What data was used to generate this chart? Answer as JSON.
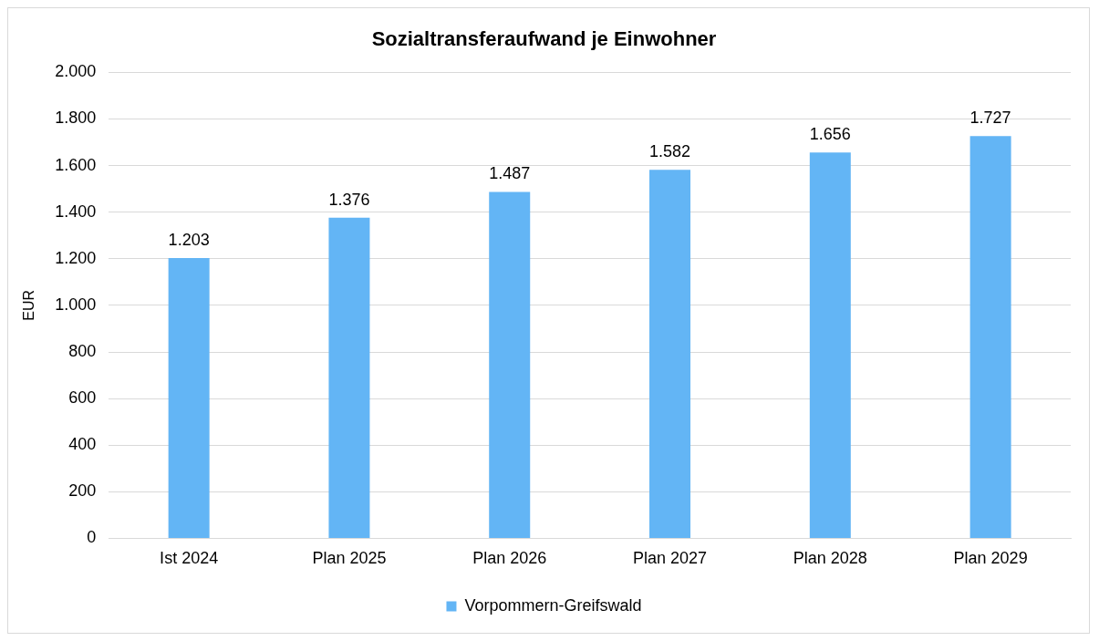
{
  "chart_data": {
    "type": "bar",
    "title": "Sozialtransferaufwand je Einwohner",
    "ylabel": "EUR",
    "categories": [
      "Ist 2024",
      "Plan 2025",
      "Plan 2026",
      "Plan 2027",
      "Plan 2028",
      "Plan 2029"
    ],
    "series": [
      {
        "name": "Vorpommern-Greifswald",
        "color": "#63b5f5",
        "values": [
          1203,
          1376,
          1487,
          1582,
          1656,
          1727
        ],
        "value_labels": [
          "1.203",
          "1.376",
          "1.487",
          "1.582",
          "1.656",
          "1.727"
        ]
      }
    ],
    "ylim": [
      0,
      2000
    ],
    "yticks": [
      {
        "value": 0,
        "label": "0"
      },
      {
        "value": 200,
        "label": "200"
      },
      {
        "value": 400,
        "label": "400"
      },
      {
        "value": 600,
        "label": "600"
      },
      {
        "value": 800,
        "label": "800"
      },
      {
        "value": 1000,
        "label": "1.000"
      },
      {
        "value": 1200,
        "label": "1.200"
      },
      {
        "value": 1400,
        "label": "1.400"
      },
      {
        "value": 1600,
        "label": "1.600"
      },
      {
        "value": 1800,
        "label": "1.800"
      },
      {
        "value": 2000,
        "label": "2.000"
      }
    ],
    "grid": "y",
    "legend": "bottom"
  }
}
